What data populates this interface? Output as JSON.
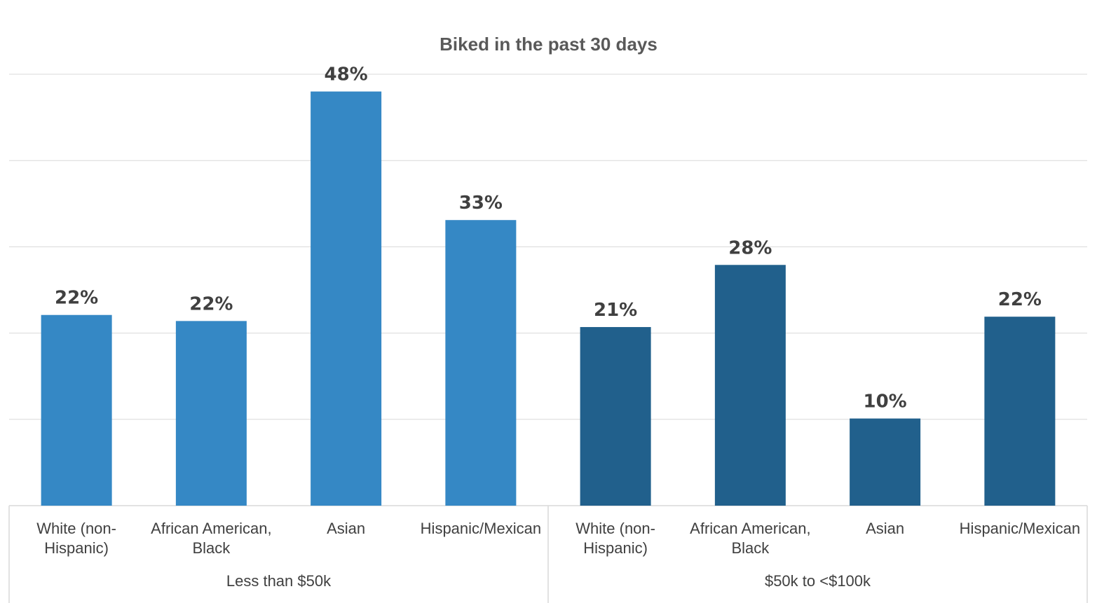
{
  "chart_data": {
    "type": "bar",
    "title": "Biked in the past 30 days",
    "xlabel": "",
    "ylabel": "",
    "ylim": [
      0,
      50
    ],
    "grid": true,
    "groups": [
      {
        "name": "Less than $50k",
        "color": "#3588C5",
        "categories": [
          [
            "White (non-",
            "Hispanic)"
          ],
          [
            "African American,",
            "Black"
          ],
          [
            "Asian"
          ],
          [
            "Hispanic/Mexican"
          ]
        ],
        "values": [
          22,
          22,
          48,
          33
        ],
        "labels": [
          "22%",
          "22%",
          "48%",
          "33%"
        ],
        "plotted": [
          22.1,
          21.4,
          48.0,
          33.1
        ]
      },
      {
        "name": "$50k to <$100k",
        "color": "#21608C",
        "categories": [
          [
            "White (non-",
            "Hispanic)"
          ],
          [
            "African American,",
            "Black"
          ],
          [
            "Asian"
          ],
          [
            "Hispanic/Mexican"
          ]
        ],
        "values": [
          21,
          28,
          10,
          22
        ],
        "labels": [
          "21%",
          "28%",
          "10%",
          "22%"
        ],
        "plotted": [
          20.7,
          27.9,
          10.1,
          21.9
        ]
      }
    ]
  }
}
